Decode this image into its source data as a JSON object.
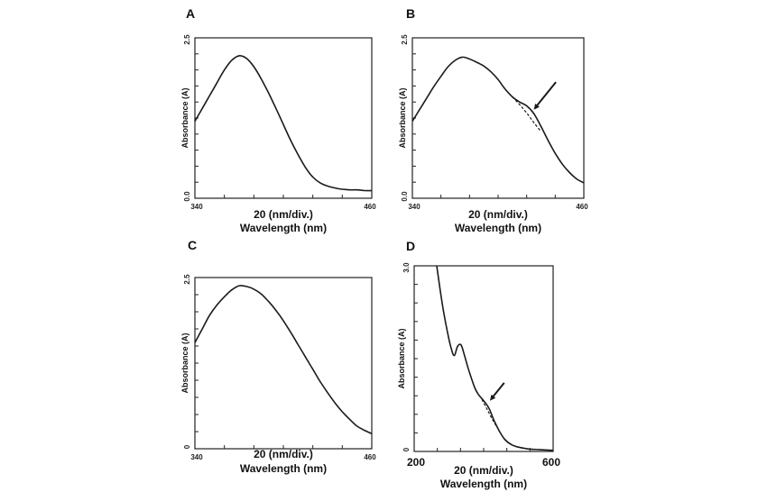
{
  "chart_data": [
    {
      "panel": "A",
      "type": "line",
      "xlabel_top": "20 (nm/div.)",
      "xlabel": "Wavelength (nm)",
      "ylabel": "Absorbance (A)",
      "x_tick_labels": [
        "340",
        "460"
      ],
      "y_tick_labels": [
        "0.0",
        "2.5"
      ],
      "xlim": [
        340,
        460
      ],
      "ylim": [
        0,
        2.5
      ],
      "series": [
        {
          "name": "spectrum",
          "style": "solid",
          "x": [
            340,
            345,
            350,
            355,
            360,
            365,
            370,
            375,
            380,
            385,
            390,
            395,
            400,
            405,
            410,
            415,
            420,
            425,
            430,
            435,
            440,
            445,
            450,
            455,
            460
          ],
          "y": [
            1.2,
            1.4,
            1.6,
            1.8,
            2.0,
            2.15,
            2.22,
            2.18,
            2.05,
            1.86,
            1.64,
            1.4,
            1.15,
            0.9,
            0.68,
            0.48,
            0.33,
            0.24,
            0.19,
            0.16,
            0.14,
            0.13,
            0.13,
            0.12,
            0.12
          ]
        }
      ]
    },
    {
      "panel": "B",
      "type": "line",
      "xlabel_top": "20 (nm/div.)",
      "xlabel": "Wavelength (nm)",
      "ylabel": "Absorbance (A)",
      "x_tick_labels": [
        "340",
        "460"
      ],
      "y_tick_labels": [
        "0.0",
        "2.5"
      ],
      "xlim": [
        340,
        460
      ],
      "ylim": [
        0,
        2.5
      ],
      "annotation": "arrow pointing to shoulder",
      "arrow_at": {
        "x": 425,
        "y": 1.38
      },
      "series": [
        {
          "name": "spectrum",
          "style": "solid",
          "x": [
            340,
            345,
            350,
            355,
            360,
            365,
            370,
            375,
            380,
            385,
            390,
            395,
            400,
            405,
            410,
            415,
            420,
            425,
            430,
            435,
            440,
            445,
            450,
            455,
            460
          ],
          "y": [
            1.2,
            1.38,
            1.56,
            1.74,
            1.9,
            2.05,
            2.15,
            2.2,
            2.17,
            2.12,
            2.06,
            1.97,
            1.85,
            1.7,
            1.58,
            1.5,
            1.44,
            1.32,
            1.12,
            0.9,
            0.7,
            0.53,
            0.4,
            0.3,
            0.24
          ]
        },
        {
          "name": "fit",
          "style": "dashed",
          "x": [
            410,
            415,
            420,
            425,
            430
          ],
          "y": [
            1.58,
            1.46,
            1.33,
            1.18,
            1.04
          ]
        }
      ]
    },
    {
      "panel": "C",
      "type": "line",
      "xlabel_top": "20 (nm/div.)",
      "xlabel": "Wavelength (nm)",
      "ylabel": "Absorbance (A)",
      "x_tick_labels": [
        "340",
        "460"
      ],
      "y_tick_labels": [
        "0",
        "2.5"
      ],
      "xlim": [
        340,
        460
      ],
      "ylim": [
        0,
        2.5
      ],
      "series": [
        {
          "name": "spectrum",
          "style": "solid",
          "x": [
            340,
            345,
            350,
            355,
            360,
            365,
            370,
            375,
            380,
            385,
            390,
            395,
            400,
            405,
            410,
            415,
            420,
            425,
            430,
            435,
            440,
            445,
            450,
            455,
            460
          ],
          "y": [
            1.55,
            1.75,
            1.95,
            2.1,
            2.22,
            2.32,
            2.38,
            2.37,
            2.33,
            2.26,
            2.15,
            2.02,
            1.87,
            1.7,
            1.52,
            1.34,
            1.16,
            0.98,
            0.82,
            0.67,
            0.54,
            0.43,
            0.33,
            0.27,
            0.22
          ]
        }
      ]
    },
    {
      "panel": "D",
      "type": "line",
      "xlabel_top": "20 (nm/div.)",
      "xlabel": "Wavelength (nm)",
      "ylabel": "Absorbance (A)",
      "x_tick_labels": [
        "200",
        "600"
      ],
      "y_tick_labels": [
        "0",
        "3.0"
      ],
      "xlim": [
        200,
        600
      ],
      "ylim": [
        0,
        3.0
      ],
      "annotation": "arrow pointing to shoulder",
      "arrow_at": {
        "x": 418,
        "y": 0.82
      },
      "series": [
        {
          "name": "spectrum",
          "style": "solid",
          "x": [
            265,
            275,
            285,
            295,
            305,
            315,
            325,
            335,
            345,
            355,
            365,
            375,
            385,
            400,
            415,
            430,
            445,
            460,
            480,
            500,
            530,
            560,
            590,
            600
          ],
          "y": [
            3.0,
            2.6,
            2.25,
            1.95,
            1.7,
            1.55,
            1.7,
            1.72,
            1.55,
            1.35,
            1.18,
            1.02,
            0.92,
            0.82,
            0.7,
            0.5,
            0.33,
            0.2,
            0.11,
            0.07,
            0.04,
            0.03,
            0.02,
            0.02
          ]
        },
        {
          "name": "fit",
          "style": "dashed",
          "x": [
            395,
            410,
            425,
            440
          ],
          "y": [
            0.84,
            0.68,
            0.52,
            0.38
          ]
        }
      ]
    }
  ]
}
